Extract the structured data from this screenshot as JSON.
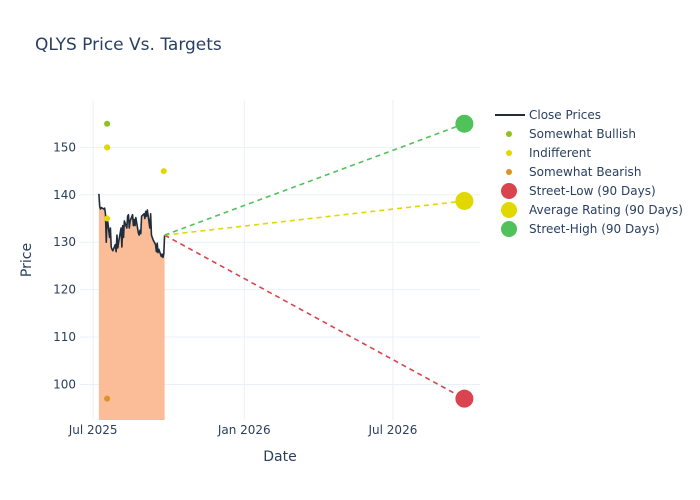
{
  "chart_data": {
    "type": "line",
    "title": "QLYS Price Vs. Targets",
    "xlabel": "Date",
    "ylabel": "Price",
    "x_range": [
      "2025-06-15",
      "2026-10-15"
    ],
    "y_range": [
      92.5,
      160
    ],
    "x_ticks": [
      {
        "date": "2025-07-01",
        "label": "Jul 2025"
      },
      {
        "date": "2026-01-01",
        "label": "Jan 2026"
      },
      {
        "date": "2026-07-01",
        "label": "Jul 2026"
      }
    ],
    "y_ticks": [
      100,
      110,
      120,
      130,
      140,
      150
    ],
    "grid": true,
    "legend_position": "right",
    "close_prices": {
      "name": "Close Prices",
      "color": "#1f2d3d",
      "fill_color": "#fbbd98",
      "points": [
        [
          "2025-07-08",
          140.2
        ],
        [
          "2025-07-09",
          137.5
        ],
        [
          "2025-07-10",
          137.0
        ],
        [
          "2025-07-11",
          137.3
        ],
        [
          "2025-07-14",
          137.0
        ],
        [
          "2025-07-15",
          137.2
        ],
        [
          "2025-07-16",
          136.0
        ],
        [
          "2025-07-17",
          130.0
        ],
        [
          "2025-07-18",
          135.5
        ],
        [
          "2025-07-21",
          131.0
        ],
        [
          "2025-07-22",
          133.0
        ],
        [
          "2025-07-23",
          129.0
        ],
        [
          "2025-07-24",
          128.5
        ],
        [
          "2025-07-25",
          128.2
        ],
        [
          "2025-07-28",
          129.5
        ],
        [
          "2025-07-29",
          128.0
        ],
        [
          "2025-07-30",
          131.5
        ],
        [
          "2025-07-31",
          128.8
        ],
        [
          "2025-08-01",
          130.0
        ],
        [
          "2025-08-04",
          133.0
        ],
        [
          "2025-08-05",
          129.0
        ],
        [
          "2025-08-06",
          133.5
        ],
        [
          "2025-08-07",
          131.0
        ],
        [
          "2025-08-08",
          134.5
        ],
        [
          "2025-08-11",
          133.0
        ],
        [
          "2025-08-12",
          135.5
        ],
        [
          "2025-08-13",
          135.8
        ],
        [
          "2025-08-14",
          133.0
        ],
        [
          "2025-08-15",
          134.5
        ],
        [
          "2025-08-18",
          135.8
        ],
        [
          "2025-08-19",
          133.5
        ],
        [
          "2025-08-20",
          134.8
        ],
        [
          "2025-08-21",
          133.5
        ],
        [
          "2025-08-22",
          135.2
        ],
        [
          "2025-08-25",
          132.0
        ],
        [
          "2025-08-26",
          131.5
        ],
        [
          "2025-08-27",
          132.5
        ],
        [
          "2025-08-28",
          131.8
        ],
        [
          "2025-08-29",
          135.5
        ],
        [
          "2025-09-01",
          136.0
        ],
        [
          "2025-09-02",
          135.0
        ],
        [
          "2025-09-03",
          136.5
        ],
        [
          "2025-09-04",
          135.5
        ],
        [
          "2025-09-05",
          136.8
        ],
        [
          "2025-09-08",
          133.0
        ],
        [
          "2025-09-09",
          136.0
        ],
        [
          "2025-09-10",
          131.5
        ],
        [
          "2025-09-11",
          131.0
        ],
        [
          "2025-09-12",
          130.5
        ],
        [
          "2025-09-15",
          129.5
        ],
        [
          "2025-09-16",
          128.0
        ],
        [
          "2025-09-17",
          129.8
        ],
        [
          "2025-09-18",
          127.8
        ],
        [
          "2025-09-19",
          128.5
        ],
        [
          "2025-09-22",
          127.0
        ],
        [
          "2025-09-23",
          127.5
        ],
        [
          "2025-09-24",
          126.8
        ],
        [
          "2025-09-25",
          127.5
        ],
        [
          "2025-09-26",
          131.5
        ]
      ]
    },
    "ratings": [
      {
        "name": "Somewhat Bullish",
        "color": "#8ec21d",
        "points": [
          [
            "2025-07-18",
            155
          ],
          [
            "2025-07-18",
            150
          ]
        ]
      },
      {
        "name": "Indifferent",
        "color": "#e1d800",
        "points": [
          [
            "2025-07-18",
            150
          ],
          [
            "2025-07-18",
            135
          ],
          [
            "2025-09-25",
            145
          ]
        ]
      },
      {
        "name": "Somewhat Bearish",
        "color": "#db9326",
        "points": [
          [
            "2025-07-18",
            97
          ]
        ]
      }
    ],
    "targets": {
      "start": [
        "2025-09-26",
        131.5
      ],
      "target_date": "2026-09-26",
      "items": [
        {
          "name": "Street-Low (90 Days)",
          "value": 97,
          "color": "#d9444e"
        },
        {
          "name": "Average Rating (90 Days)",
          "value": 138.7,
          "color": "#e1d800"
        },
        {
          "name": "Street-High (90 Days)",
          "value": 155,
          "color": "#4fc25a"
        }
      ]
    }
  }
}
